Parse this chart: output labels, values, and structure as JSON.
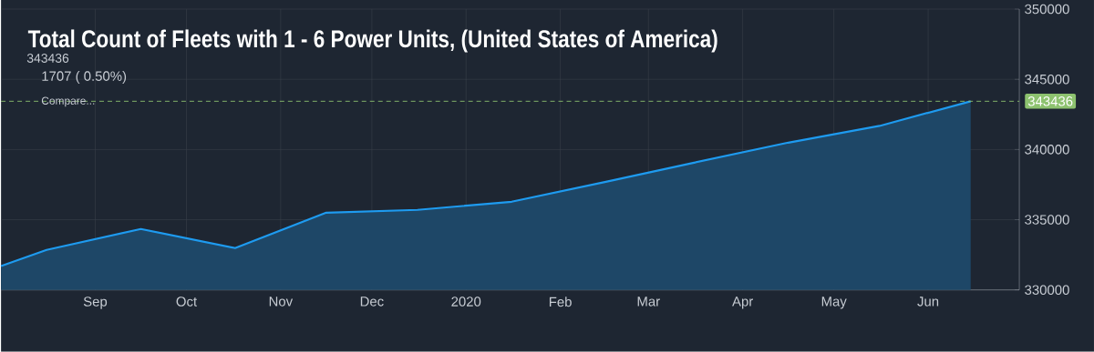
{
  "chart_data": {
    "type": "area",
    "title": "Total Count of Fleets with 1 - 6 Power Units, (United States of America)",
    "annotations": [
      "343436",
      "1707 ( 0.50%)",
      "Compare..."
    ],
    "x": [
      "2019-08-01",
      "2019-08-16",
      "2019-09-16",
      "2019-10-17",
      "2019-11-16",
      "2019-12-16",
      "2020-01-16",
      "2020-02-16",
      "2020-03-16",
      "2020-04-16",
      "2020-05-16",
      "2020-06-15"
    ],
    "series": [
      {
        "color": "#1e9bf0",
        "values": [
          331700,
          332850,
          334340,
          332980,
          335500,
          335700,
          336280,
          337700,
          339060,
          340490,
          341680,
          343436
        ]
      }
    ],
    "xlim": [
      "2019-08-01",
      "2020-07-01"
    ],
    "xticks": [
      {
        "value": "2019-09-01",
        "label": "Sep"
      },
      {
        "value": "2019-10-01",
        "label": "Oct"
      },
      {
        "value": "2019-11-01",
        "label": "Nov"
      },
      {
        "value": "2019-12-01",
        "label": "Dec"
      },
      {
        "value": "2020-01-01",
        "label": "2020"
      },
      {
        "value": "2020-02-01",
        "label": "Feb"
      },
      {
        "value": "2020-03-01",
        "label": "Mar"
      },
      {
        "value": "2020-04-01",
        "label": "Apr"
      },
      {
        "value": "2020-05-01",
        "label": "May"
      },
      {
        "value": "2020-06-01",
        "label": "Jun"
      }
    ],
    "ylim": [
      330000,
      350000
    ],
    "yticks": [
      330000,
      335000,
      340000,
      345000,
      350000
    ],
    "ref_lines": [
      {
        "axis": "y",
        "value": 343436,
        "label": "343436",
        "color": "#8dc26f",
        "line_style": "dashed"
      }
    ],
    "grid": true,
    "marker": "none",
    "line_style": "solid"
  }
}
